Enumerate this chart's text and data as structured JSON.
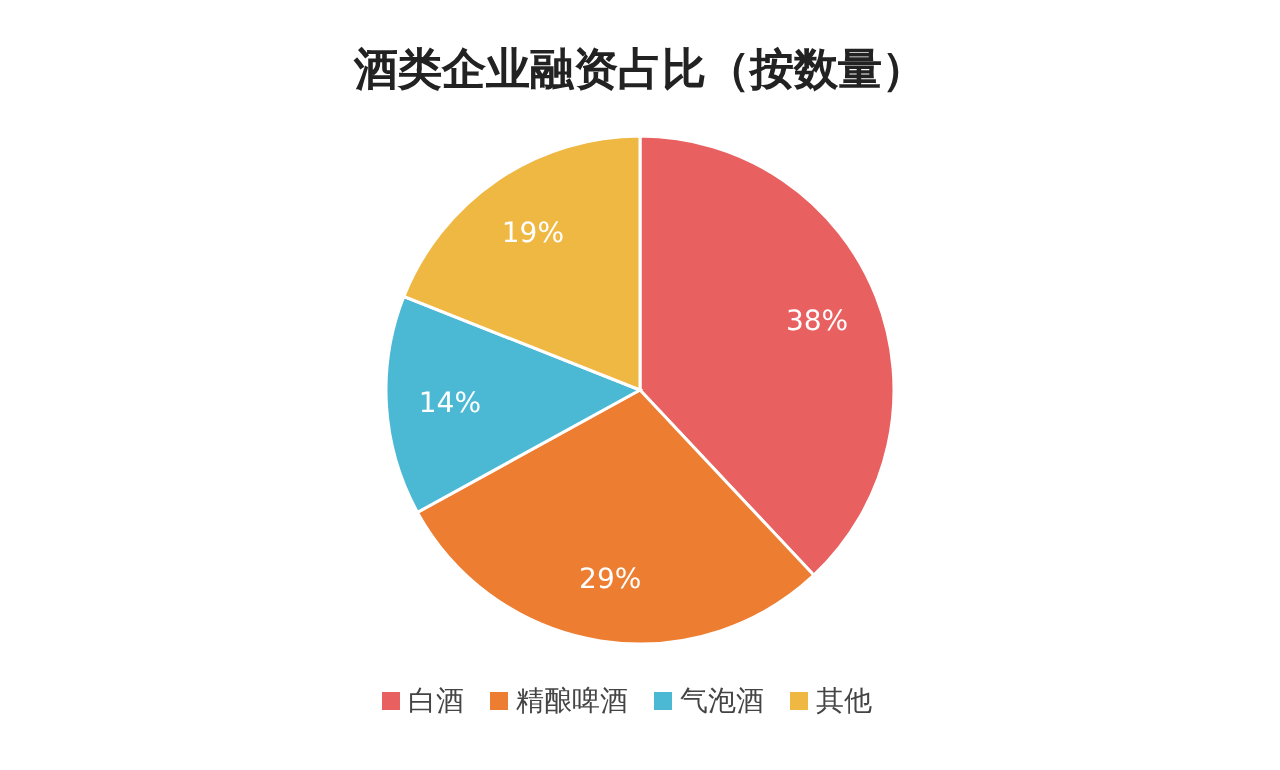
{
  "chart_data": {
    "type": "pie",
    "title": "酒类企业融资占比（按数量）",
    "categories": [
      "白酒",
      "精酿啤酒",
      "气泡酒",
      "其他"
    ],
    "values": [
      38,
      29,
      14,
      19
    ],
    "colors": [
      "#e8605f",
      "#ed7d31",
      "#4bb8d4",
      "#efb843"
    ],
    "value_labels": [
      "38%",
      "29%",
      "14%",
      "19%"
    ],
    "legend": "bottom"
  }
}
